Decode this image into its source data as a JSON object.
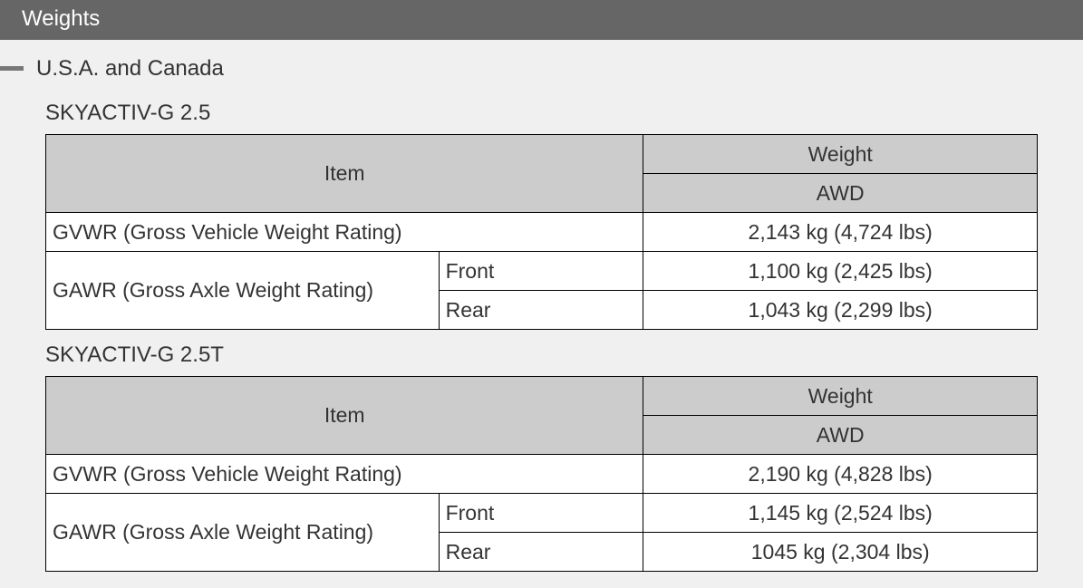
{
  "header": {
    "title": "Weights"
  },
  "region": {
    "title": "U.S.A. and Canada"
  },
  "tables": [
    {
      "caption": "SKYACTIV-G 2.5",
      "col_item": "Item",
      "col_weight": "Weight",
      "col_drive": "AWD",
      "gvwr_label": "GVWR (Gross Vehicle Weight Rating)",
      "gvwr": "2,143 kg (4,724 lbs)",
      "gawr_label": "GAWR (Gross Axle Weight Rating)",
      "front_label": "Front",
      "front": "1,100 kg (2,425 lbs)",
      "rear_label": "Rear",
      "rear": "1,043 kg (2,299 lbs)"
    },
    {
      "caption": "SKYACTIV-G 2.5T",
      "col_item": "Item",
      "col_weight": "Weight",
      "col_drive": "AWD",
      "gvwr_label": "GVWR (Gross Vehicle Weight Rating)",
      "gvwr": "2,190 kg (4,828 lbs)",
      "gawr_label": "GAWR (Gross Axle Weight Rating)",
      "front_label": "Front",
      "front": "1,145 kg (2,524 lbs)",
      "rear_label": "Rear",
      "rear": "1045 kg (2,304 lbs)"
    }
  ]
}
